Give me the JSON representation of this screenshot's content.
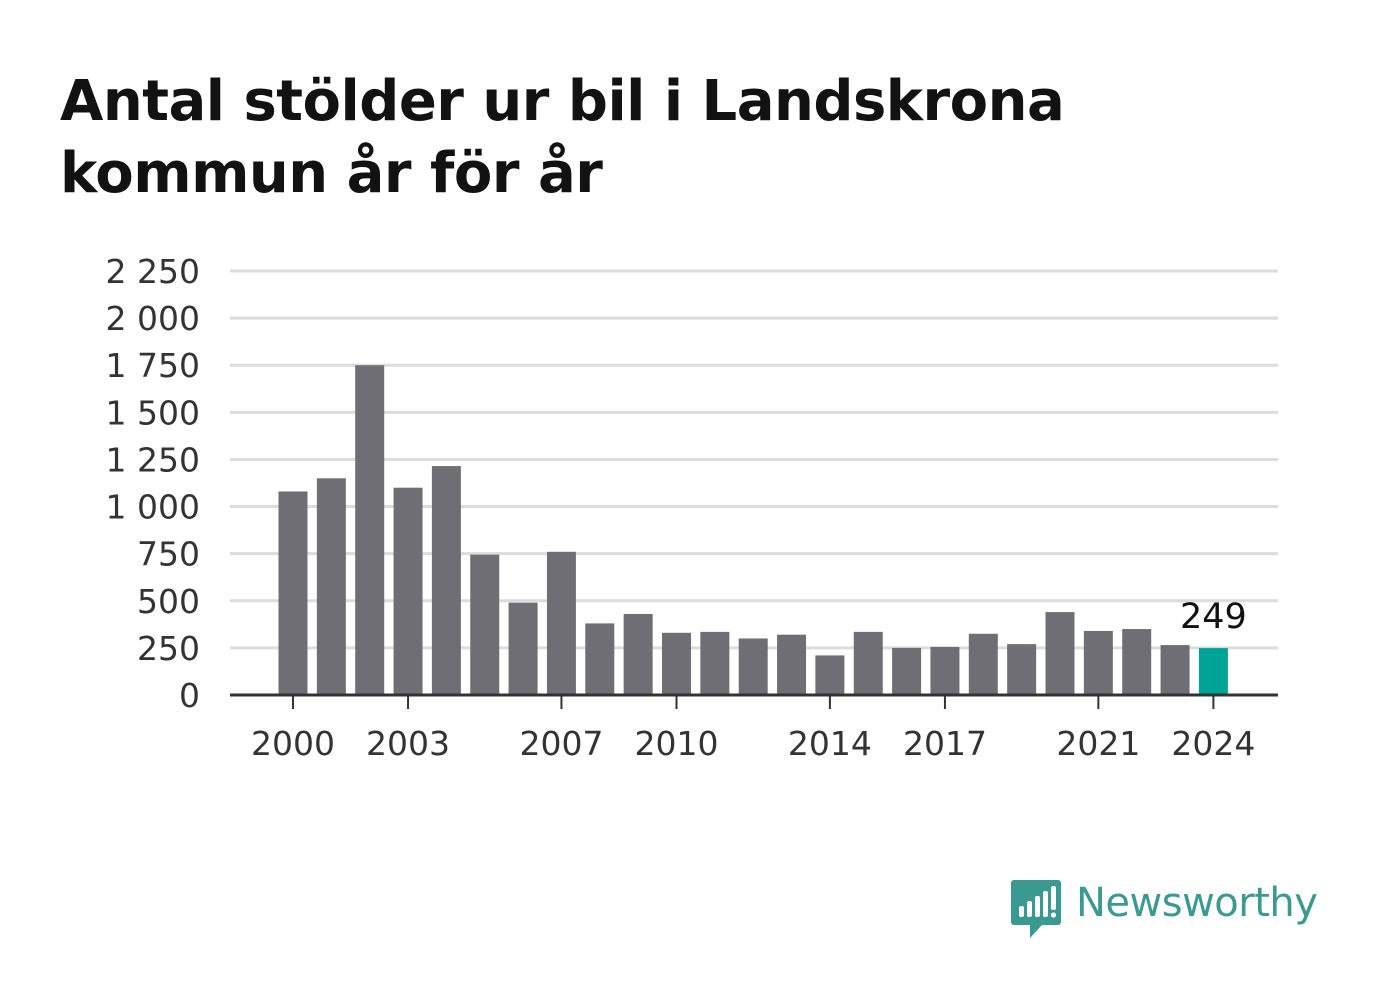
{
  "title": "Antal stölder ur bil i Landskrona kommun år för år",
  "chart_data": {
    "type": "bar",
    "title": "Antal stölder ur bil i Landskrona kommun år för år",
    "categories": [
      "2000",
      "2001",
      "2002",
      "2003",
      "2004",
      "2005",
      "2006",
      "2007",
      "2008",
      "2009",
      "2010",
      "2011",
      "2012",
      "2013",
      "2014",
      "2015",
      "2016",
      "2017",
      "2018",
      "2019",
      "2020",
      "2021",
      "2022",
      "2023",
      "2024"
    ],
    "values": [
      1080,
      1150,
      1750,
      1100,
      1215,
      745,
      490,
      760,
      380,
      430,
      330,
      335,
      300,
      320,
      210,
      335,
      250,
      255,
      325,
      270,
      440,
      340,
      350,
      265,
      249
    ],
    "x_tick_labels": [
      "2000",
      "2003",
      "2007",
      "2010",
      "2014",
      "2017",
      "2021",
      "2024"
    ],
    "y_ticks": [
      0,
      250,
      500,
      750,
      1000,
      1250,
      1500,
      1750,
      2000,
      2250
    ],
    "y_tick_labels": [
      "0",
      "250",
      "500",
      "750",
      "1 000",
      "1 250",
      "1 500",
      "1 750",
      "2 000",
      "2 250"
    ],
    "ylim": [
      0,
      2250
    ],
    "xlabel": "",
    "ylabel": "",
    "annotation": {
      "category": "2024",
      "label": "249"
    },
    "grid": true,
    "colors": {
      "bar": "#6f6e74",
      "highlight": "#00a497",
      "grid": "#dcdcdc",
      "axis": "#333333",
      "text": "#333333"
    }
  },
  "brand": {
    "name": "Newsworthy",
    "logo_icon": "speech-bubble-bar-chart-icon",
    "color": "#3a9a92"
  }
}
